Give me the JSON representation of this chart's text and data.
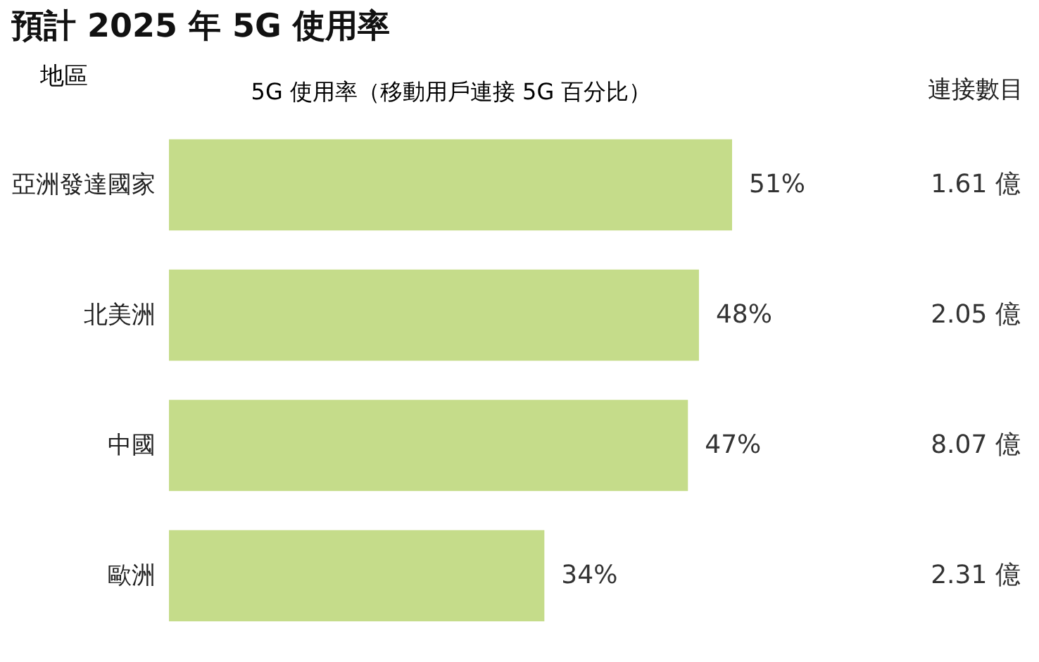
{
  "chart_data": {
    "type": "bar",
    "orientation": "horizontal",
    "title": "預計 2025 年 5G 使用率",
    "ylabel": "地區",
    "xlabel": "5G 使用率（移動用戶連接 5G 百分比）",
    "categories": [
      "亞洲發達國家",
      "北美洲",
      "中國",
      "歐洲"
    ],
    "values": [
      51,
      48,
      47,
      34
    ],
    "value_labels": [
      "51%",
      "48%",
      "47%",
      "34%"
    ],
    "color": "#c5dc8a",
    "tick_labels": "y",
    "annotations": [
      "連接數目",
      "1.61 億",
      "2.05 億",
      "8.07 億",
      "2.31 億"
    ]
  }
}
